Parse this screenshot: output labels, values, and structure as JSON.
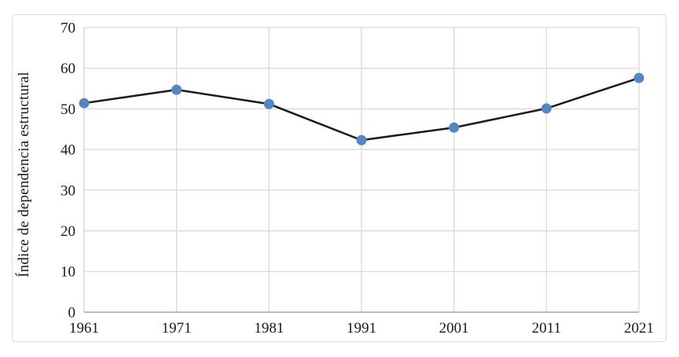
{
  "figure": {
    "background": "#ffffff",
    "border_color": "#d9d9d9"
  },
  "chart_data": {
    "type": "line",
    "title": "",
    "xlabel": "",
    "ylabel": "Índice de dependencia estructural",
    "categories": [
      "1961",
      "1971",
      "1981",
      "1991",
      "2001",
      "2011",
      "2021"
    ],
    "series": [
      {
        "name": "Índice de dependencia estructural",
        "values": [
          51.4,
          54.7,
          51.2,
          42.3,
          45.4,
          50.1,
          57.6
        ],
        "line_color": "#1a1a1a",
        "line_width": 2.5,
        "marker": "circle",
        "marker_color": "#5585c2",
        "marker_radius": 6.5
      }
    ],
    "ylim": [
      0,
      70
    ],
    "yticks": [
      0,
      10,
      20,
      30,
      40,
      50,
      60,
      70
    ],
    "grid": "both",
    "gridline_color": "#d9d9d9",
    "axis_color": "#a6a6a6",
    "tick_label_color": "#1a1a1a",
    "legend": "none"
  }
}
